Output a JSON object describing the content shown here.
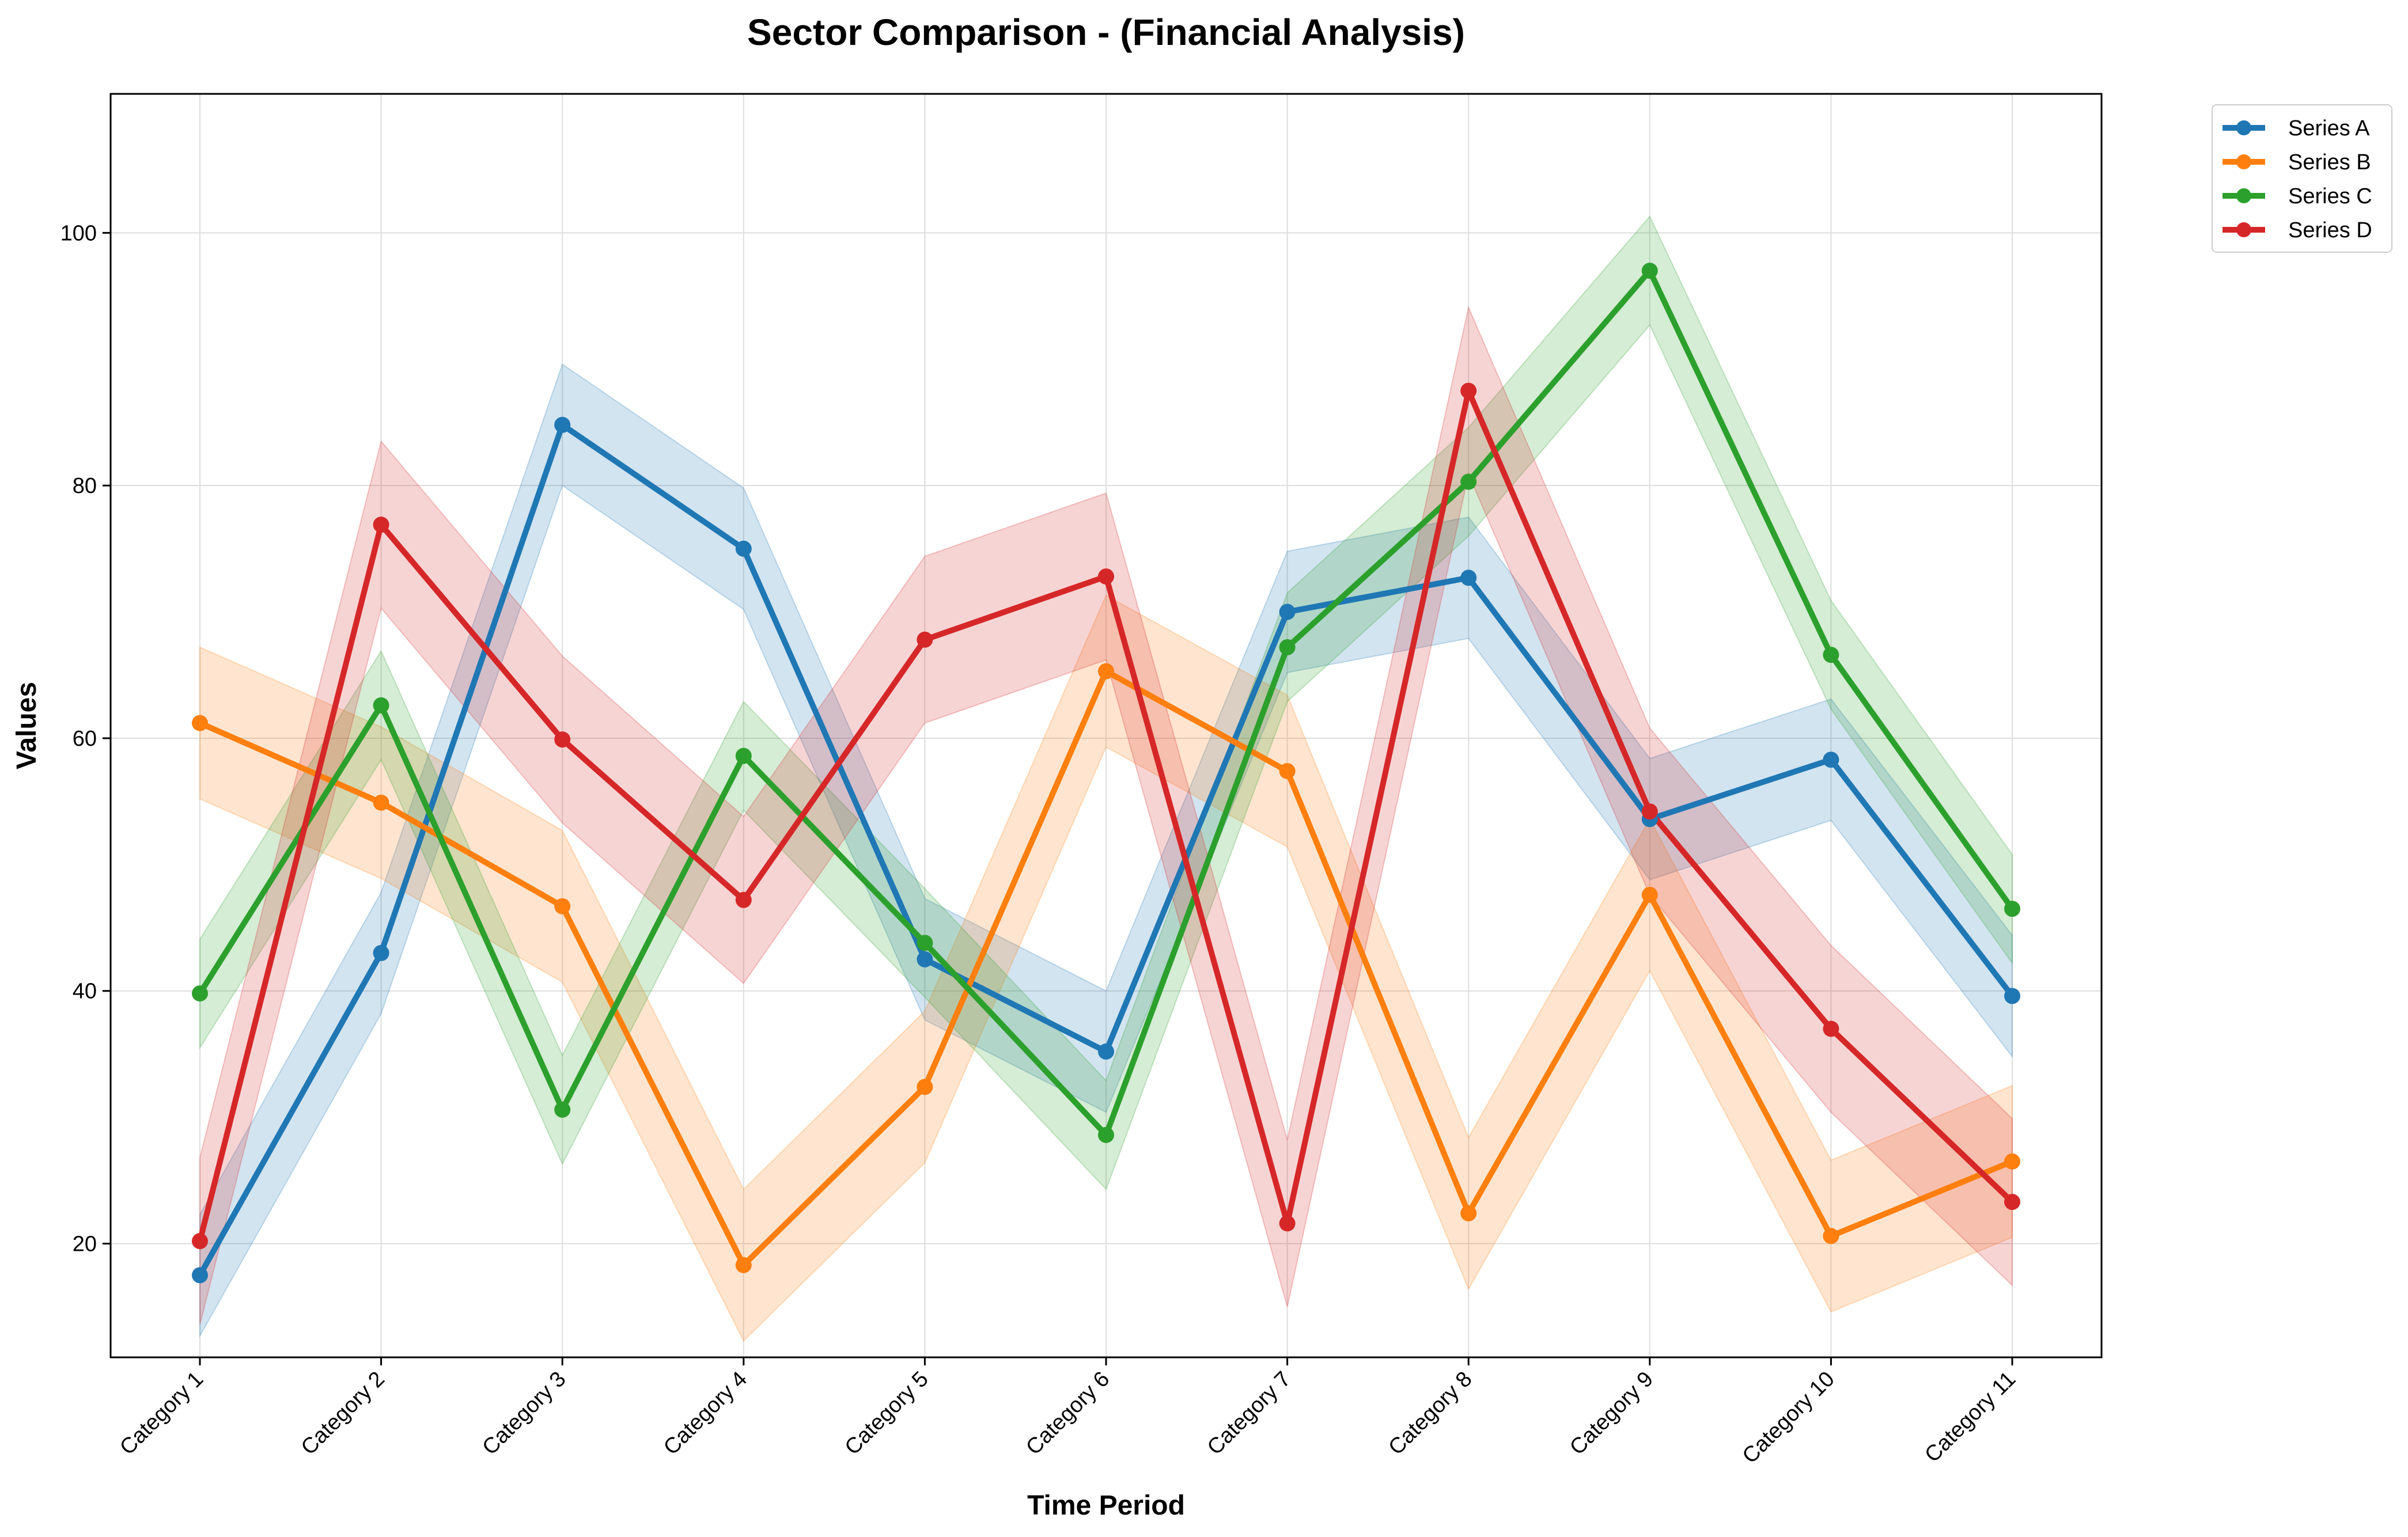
{
  "chart_data": {
    "type": "line",
    "title": "Sector Comparison - (Financial Analysis)",
    "xlabel": "Time Period",
    "ylabel": "Values",
    "categories": [
      "Category 1",
      "Category 2",
      "Category 3",
      "Category 4",
      "Category 5",
      "Category 6",
      "Category 7",
      "Category 8",
      "Category 9",
      "Category 10",
      "Category 11"
    ],
    "ylim": [
      11,
      111
    ],
    "yticks": [
      20,
      40,
      60,
      80,
      100
    ],
    "grid": true,
    "legend_position": "top-right",
    "band_note": "shaded band of about ±5 around each series",
    "series": [
      {
        "name": "Series A",
        "color": "#1f77b4",
        "values": [
          17.5,
          43.0,
          84.8,
          75.0,
          42.5,
          35.2,
          70.0,
          72.7,
          53.6,
          58.3,
          39.6
        ],
        "band": 4.8
      },
      {
        "name": "Series B",
        "color": "#ff7f0e",
        "values": [
          61.2,
          54.9,
          46.7,
          18.3,
          32.4,
          65.3,
          57.4,
          22.4,
          47.6,
          20.6,
          26.5
        ],
        "band": 6.0
      },
      {
        "name": "Series C",
        "color": "#2ca02c",
        "values": [
          39.8,
          62.6,
          30.6,
          58.6,
          43.8,
          28.6,
          67.2,
          80.3,
          97.0,
          66.6,
          46.5
        ],
        "band": 4.3
      },
      {
        "name": "Series D",
        "color": "#d62728",
        "values": [
          20.2,
          76.9,
          59.9,
          47.2,
          67.8,
          72.8,
          21.6,
          87.5,
          54.2,
          37.0,
          23.3
        ],
        "band": 6.6
      }
    ]
  }
}
